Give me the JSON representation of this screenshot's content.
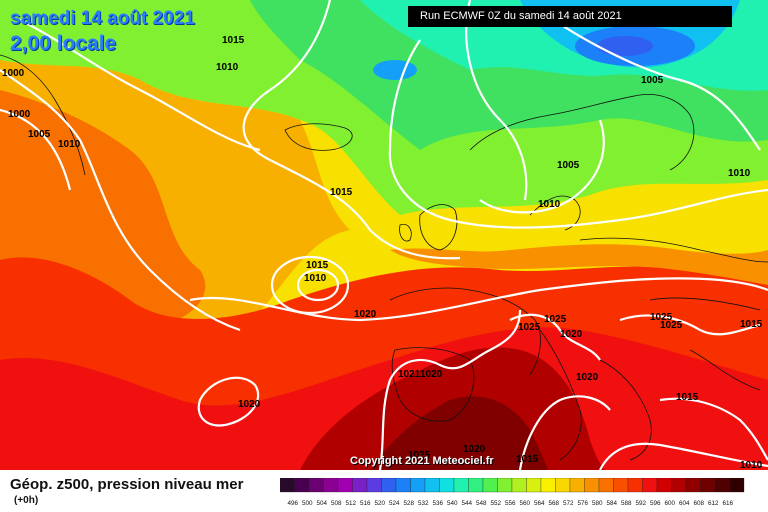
{
  "header": {
    "date_line": "samedi 14 août 2021",
    "time_line": "2,00 locale",
    "run_label": "Run ECMWF 0Z du samedi 14 août 2021"
  },
  "footer": {
    "product": "Géop. z500, pression niveau mer",
    "lead": "(+0h)",
    "copyright": "Copyright 2021 Meteociel.fr"
  },
  "legend": {
    "colors": [
      "#2a0a2a",
      "#4a0050",
      "#6b0070",
      "#8a0090",
      "#a000b0",
      "#7a20c8",
      "#5a3ce0",
      "#3060f0",
      "#1c80f8",
      "#14a0f8",
      "#10c0f0",
      "#10e0e0",
      "#20f0b0",
      "#30f080",
      "#50f050",
      "#80f030",
      "#b0f020",
      "#d8f010",
      "#f8f000",
      "#f8d800",
      "#f8b000",
      "#f89000",
      "#f87000",
      "#f85000",
      "#f83000",
      "#f01010",
      "#d00000",
      "#b00000",
      "#900000",
      "#700000",
      "#500000",
      "#300000"
    ],
    "values": [
      "496",
      "500",
      "504",
      "508",
      "512",
      "516",
      "520",
      "524",
      "528",
      "532",
      "536",
      "540",
      "544",
      "548",
      "552",
      "556",
      "560",
      "564",
      "568",
      "572",
      "576",
      "580",
      "584",
      "588",
      "592",
      "596",
      "600",
      "604",
      "608",
      "612",
      "616"
    ]
  },
  "isobar_labels": [
    {
      "text": "1015"
    },
    {
      "text": "1010"
    },
    {
      "text": "1000"
    },
    {
      "text": "1000"
    },
    {
      "text": "1005"
    },
    {
      "text": "1010"
    },
    {
      "text": "1015"
    },
    {
      "text": "1015"
    },
    {
      "text": "1010"
    },
    {
      "text": "1020"
    },
    {
      "text": "1020"
    },
    {
      "text": "1005"
    },
    {
      "text": "1005"
    },
    {
      "text": "1010"
    },
    {
      "text": "1010"
    },
    {
      "text": "1025"
    },
    {
      "text": "1025"
    },
    {
      "text": "1020"
    },
    {
      "text": "1025"
    },
    {
      "text": "1025"
    },
    {
      "text": "1015"
    },
    {
      "text": "1021"
    },
    {
      "text": "1020"
    },
    {
      "text": "1020"
    },
    {
      "text": "1015"
    },
    {
      "text": "1025"
    },
    {
      "text": "1020"
    },
    {
      "text": "1015"
    },
    {
      "text": "1010"
    }
  ]
}
